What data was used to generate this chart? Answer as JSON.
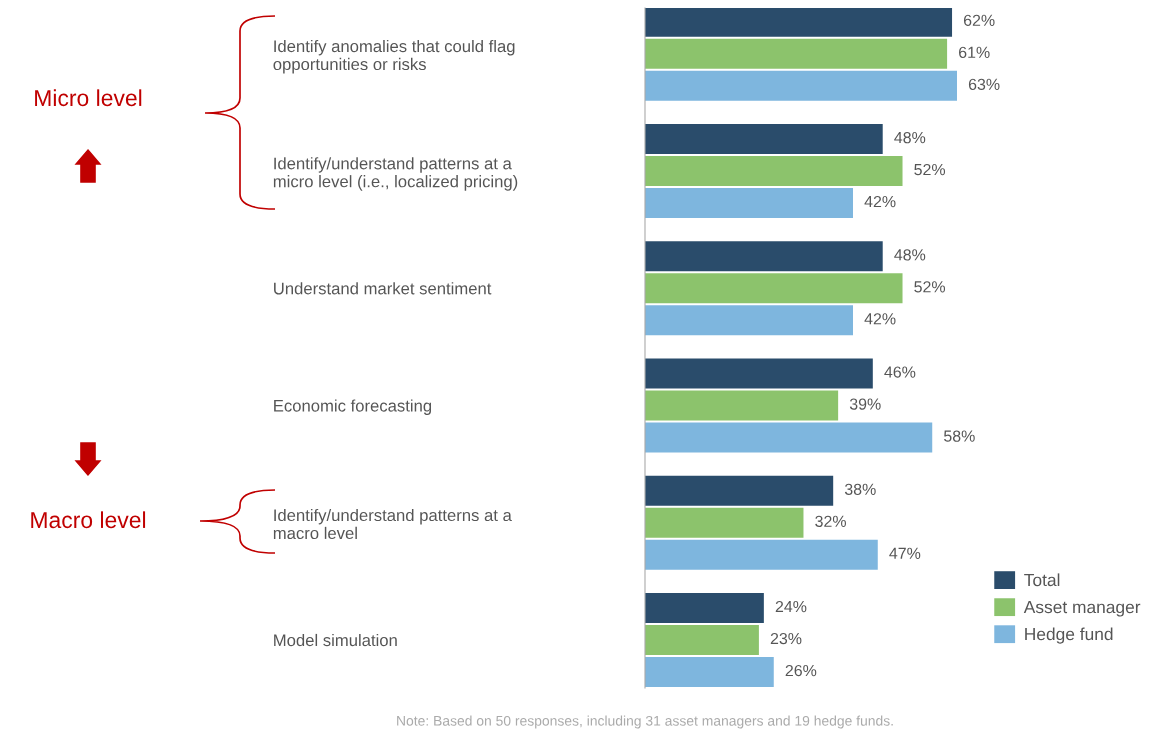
{
  "chart_data": {
    "type": "bar",
    "orientation": "horizontal",
    "categories": [
      "Identify anomalies that could flag\nopportunities or risks",
      "Identify/understand patterns at a\nmicro level (i.e., localized pricing)",
      "Understand market sentiment",
      "Economic forecasting",
      "Identify/understand patterns at a\nmacro level",
      "Model simulation"
    ],
    "series": [
      {
        "name": "Total",
        "color": "#2a4c6b",
        "values": [
          62,
          48,
          48,
          46,
          38,
          24
        ],
        "value_labels": [
          "62%",
          "48%",
          "48%",
          "46%",
          "38%",
          "24%"
        ]
      },
      {
        "name": "Asset manager",
        "color": "#8cc36c",
        "values": [
          61,
          52,
          52,
          39,
          32,
          23
        ],
        "value_labels": [
          "61%",
          "52%",
          "52%",
          "39%",
          "32%",
          "23%"
        ]
      },
      {
        "name": "Hedge fund",
        "color": "#7eb6de",
        "values": [
          63,
          42,
          42,
          58,
          47,
          26
        ],
        "value_labels": [
          "63%",
          "42%",
          "42%",
          "58%",
          "47%",
          "26%"
        ]
      }
    ],
    "legend": "bottom right",
    "annotations": [
      "Micro level",
      "Macro level",
      "Note: Based on 50 responses, including 31 asset managers and 19 hedge funds."
    ]
  }
}
